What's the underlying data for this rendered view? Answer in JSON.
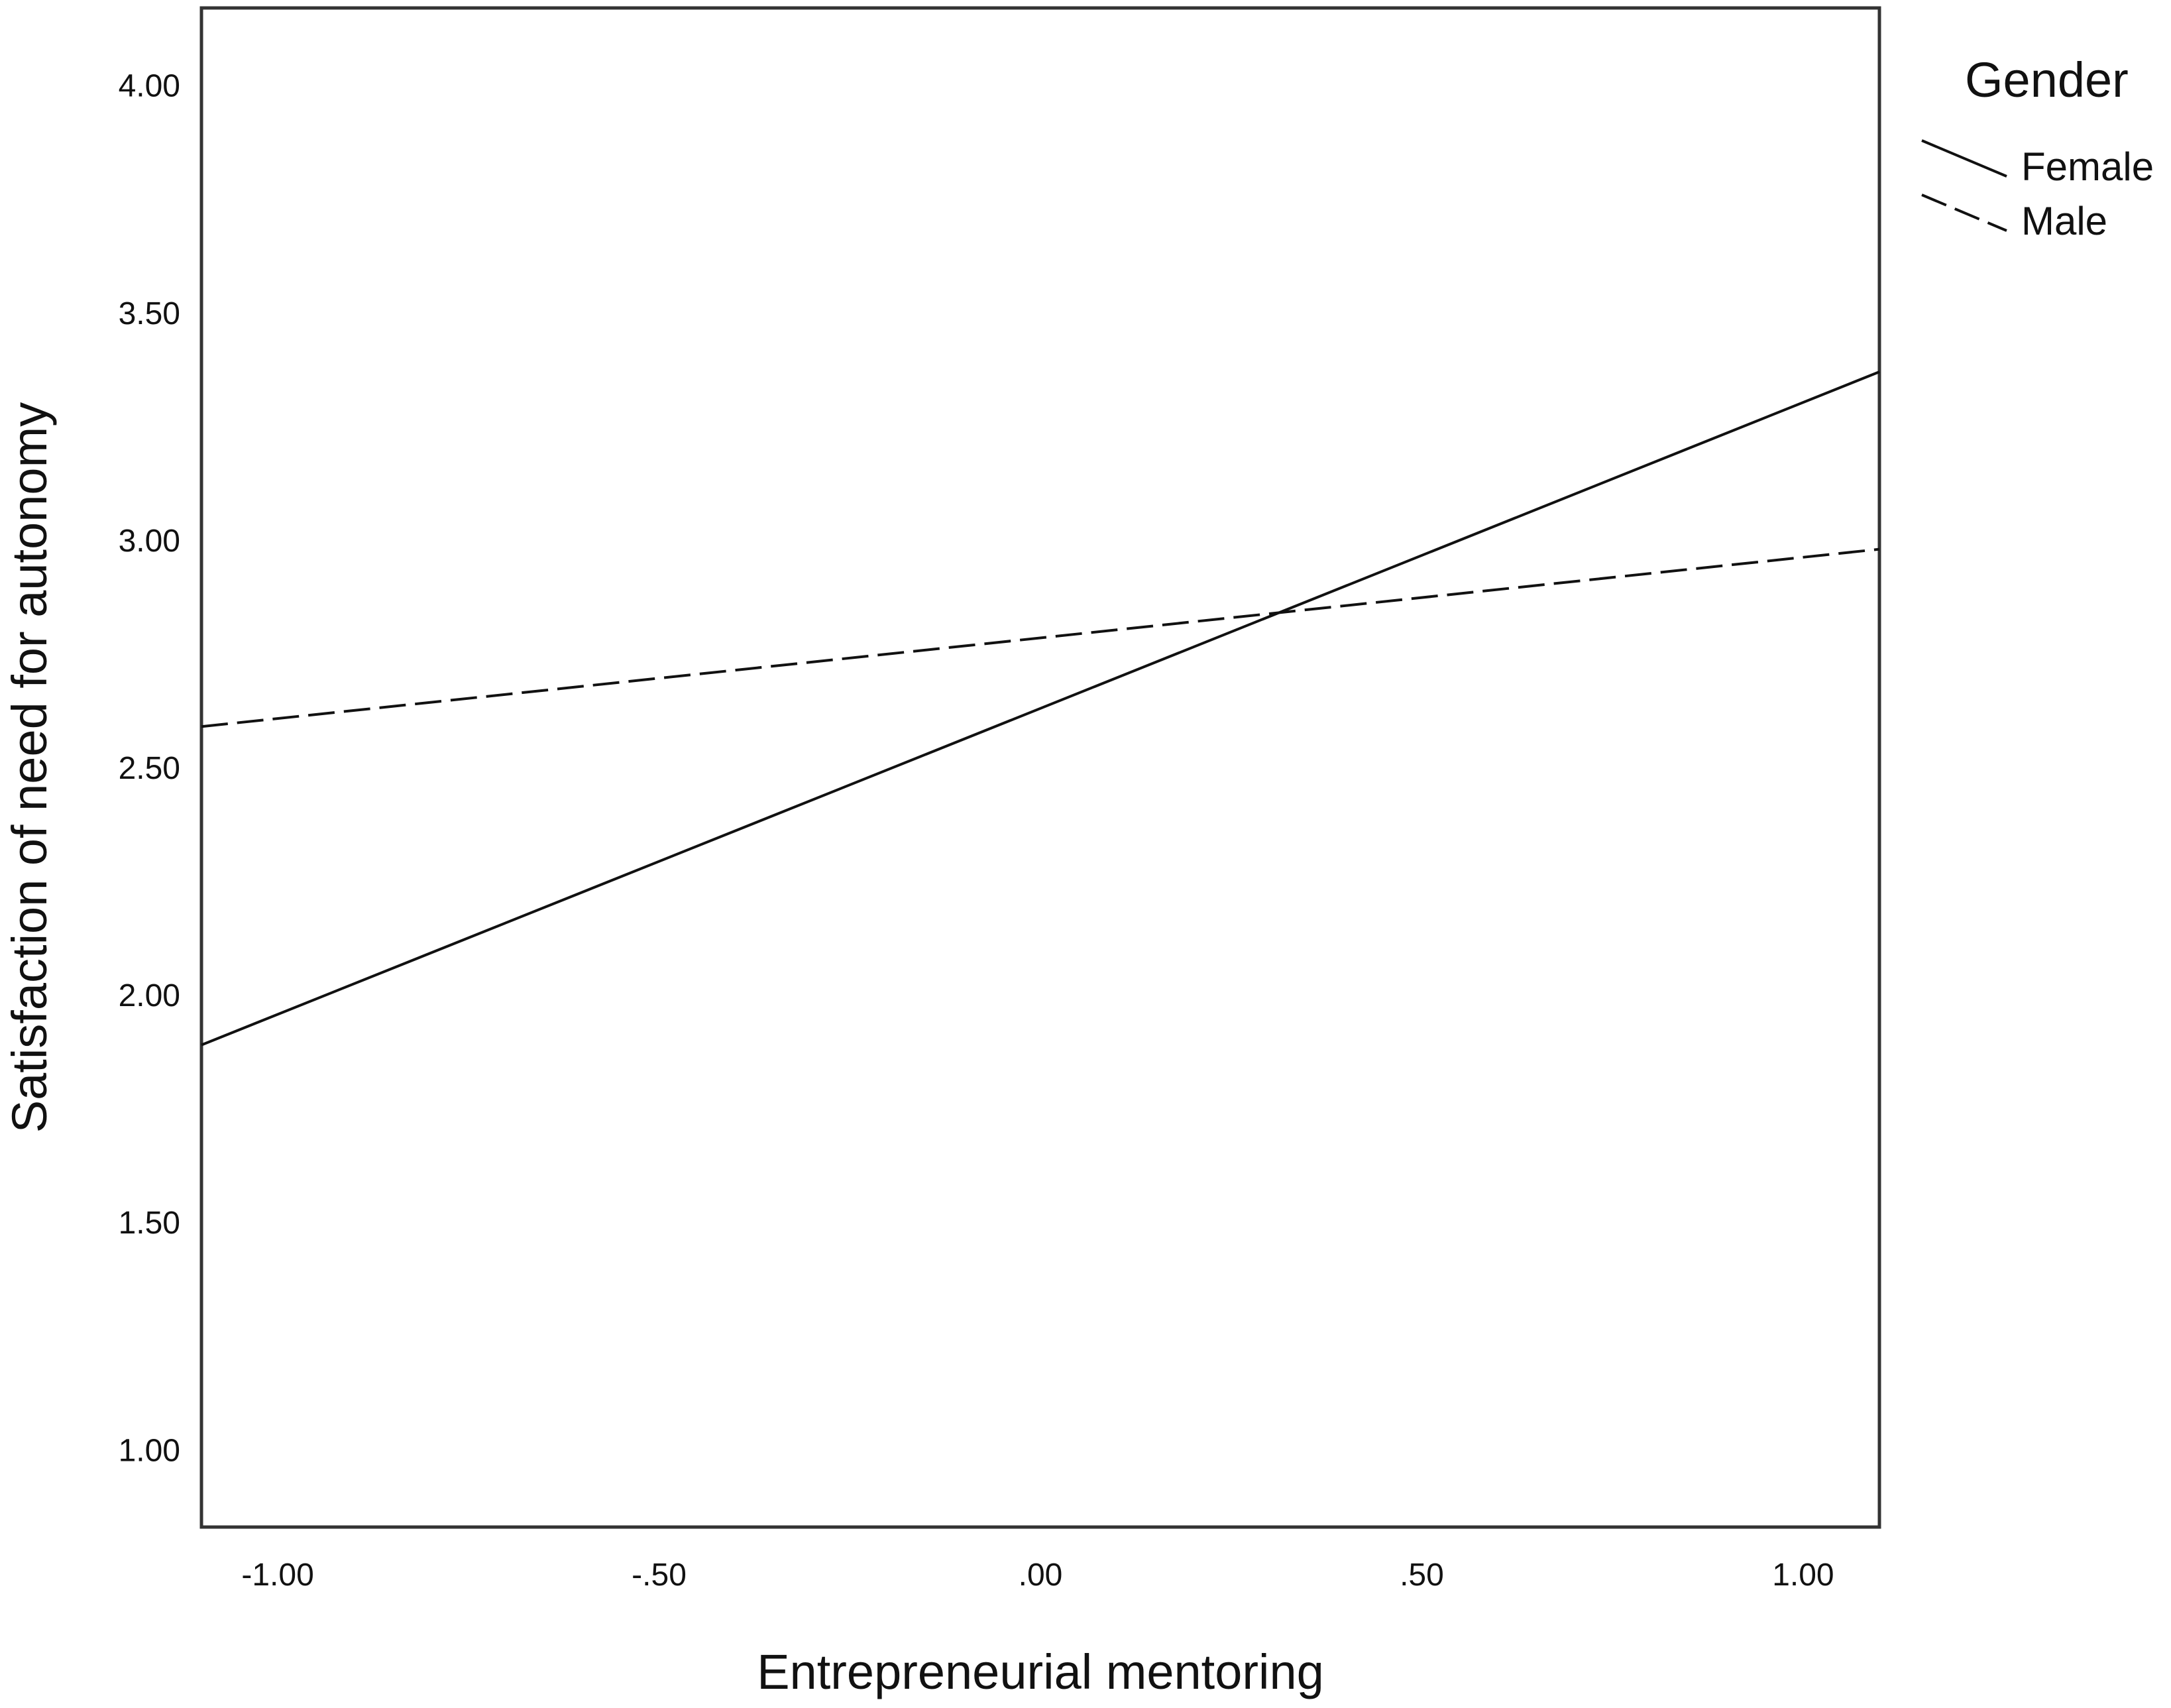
{
  "chart_data": {
    "type": "line",
    "title": "",
    "xlabel": "Entrepreneurial mentoring",
    "ylabel": "Satisfaction of need for autonomy",
    "xlim": [
      -1.1,
      1.1
    ],
    "ylim": [
      0.83,
      4.17
    ],
    "xticks": [
      -1.0,
      -0.5,
      0.0,
      0.5,
      1.0
    ],
    "xtick_labels": [
      "-1.00",
      "-.50",
      ".00",
      ".50",
      "1.00"
    ],
    "yticks": [
      1.0,
      1.5,
      2.0,
      2.5,
      3.0,
      3.5,
      4.0
    ],
    "ytick_labels": [
      "1.00",
      "1.50",
      "2.00",
      "2.50",
      "3.00",
      "3.50",
      "4.00"
    ],
    "grid": false,
    "legend": {
      "title": "Gender",
      "position": "top-right, outside plot"
    },
    "series": [
      {
        "name": "Female",
        "line_style": "solid",
        "color": "#111111",
        "x": [
          -1.1,
          1.1
        ],
        "y": [
          1.89,
          3.37
        ]
      },
      {
        "name": "Male",
        "line_style": "dashed",
        "color": "#111111",
        "x": [
          -1.1,
          1.1
        ],
        "y": [
          2.59,
          2.98
        ]
      }
    ]
  }
}
